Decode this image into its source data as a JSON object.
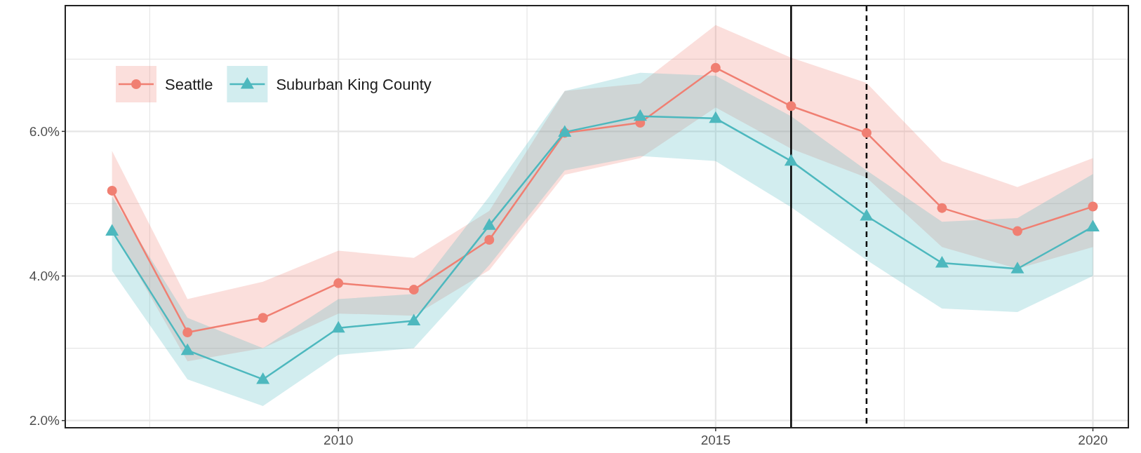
{
  "chart_data": {
    "type": "line",
    "x": [
      2007,
      2008,
      2009,
      2010,
      2011,
      2012,
      2013,
      2014,
      2015,
      2016,
      2017,
      2018,
      2019,
      2020
    ],
    "xlim": [
      2006.38,
      2020.47
    ],
    "ylim": [
      1.9,
      7.74
    ],
    "xticks": [
      {
        "value": 2007.5,
        "label": null
      },
      {
        "value": 2010,
        "label": "2010"
      },
      {
        "value": 2012.5,
        "label": null
      },
      {
        "value": 2015,
        "label": "2015"
      },
      {
        "value": 2017.5,
        "label": null
      },
      {
        "value": 2020,
        "label": "2020"
      }
    ],
    "yticks": [
      {
        "value": 2,
        "label": "2.0%"
      },
      {
        "value": 3,
        "label": null
      },
      {
        "value": 4,
        "label": "4.0%"
      },
      {
        "value": 5,
        "label": null
      },
      {
        "value": 6,
        "label": "6.0%"
      },
      {
        "value": 7,
        "label": null
      }
    ],
    "grid": true,
    "legend": "top left",
    "line_style": "solid",
    "series": [
      {
        "name": "Seattle",
        "color": "#f07f72",
        "marker": "circle",
        "values": [
          5.18,
          3.22,
          3.42,
          3.9,
          3.81,
          4.5,
          5.98,
          6.12,
          6.88,
          6.35,
          5.98,
          4.94,
          4.62,
          4.96
        ],
        "lower": [
          4.65,
          2.82,
          3.0,
          3.48,
          3.45,
          4.08,
          5.4,
          5.63,
          6.33,
          5.76,
          5.36,
          4.4,
          4.1,
          4.4
        ],
        "upper": [
          5.73,
          3.68,
          3.92,
          4.35,
          4.25,
          4.9,
          6.56,
          6.66,
          7.47,
          7.02,
          6.67,
          5.59,
          5.23,
          5.63
        ]
      },
      {
        "name": "Suburban King County",
        "color": "#4db8be",
        "marker": "triangle",
        "values": [
          4.62,
          2.97,
          2.57,
          3.28,
          3.38,
          4.7,
          5.99,
          6.21,
          6.18,
          5.59,
          4.83,
          4.18,
          4.1,
          4.68
        ],
        "lower": [
          4.07,
          2.57,
          2.2,
          2.91,
          3.0,
          4.15,
          5.46,
          5.66,
          5.59,
          4.95,
          4.22,
          3.55,
          3.5,
          4.0
        ],
        "upper": [
          5.1,
          3.42,
          3.0,
          3.68,
          3.75,
          5.1,
          6.56,
          6.81,
          6.77,
          6.21,
          5.46,
          4.75,
          4.8,
          5.41
        ]
      }
    ],
    "ref_lines": [
      {
        "axis": "x",
        "value": 2016,
        "color": "#000000",
        "line_style": "solid"
      },
      {
        "axis": "x",
        "value": 2017,
        "color": "#000000",
        "line_style": "dashed"
      }
    ]
  }
}
